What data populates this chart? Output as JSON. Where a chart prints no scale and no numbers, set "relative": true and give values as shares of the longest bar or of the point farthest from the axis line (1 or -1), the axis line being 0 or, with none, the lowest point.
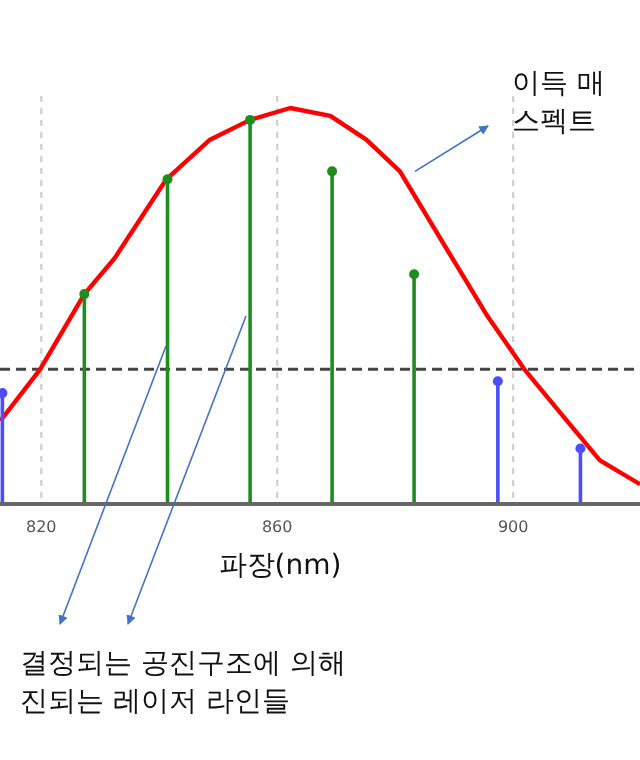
{
  "chart_data": {
    "type": "lollipop",
    "relative": true,
    "xlabel": "파장(nm)",
    "xlim": [
      813,
      921.5
    ],
    "xticks": [
      820,
      860,
      900
    ],
    "grid": "x",
    "series": [
      {
        "type": "line",
        "color": "#ff0000",
        "x": [
          813.05,
          819.8,
          827.3,
          832.4,
          841.2,
          848.6,
          855.4,
          862.2,
          869.0,
          875.1,
          880.8,
          889.7,
          895.4,
          901.9,
          908.0,
          914.7,
          921.5
        ],
        "values": [
          0.21,
          0.34,
          0.53,
          0.62,
          0.82,
          0.92,
          0.97,
          1.0,
          0.98,
          0.92,
          0.84,
          0.62,
          0.48,
          0.34,
          0.23,
          0.11,
          0.05
        ]
      },
      {
        "marker": "circle",
        "color": "#1f8c1f",
        "x": [
          827.3,
          841.4,
          855.4,
          869.3,
          883.2
        ],
        "values": [
          0.53,
          0.82,
          0.97,
          0.84,
          0.58
        ]
      },
      {
        "marker": "circle",
        "color": "#4d4dff",
        "x": [
          813.4,
          897.4,
          911.4
        ],
        "values": [
          0.28,
          0.31,
          0.14
        ]
      }
    ],
    "ref_lines": [
      {
        "axis": "y",
        "value": 0.34,
        "color": "#444444",
        "line_style": "dashed"
      }
    ],
    "annotations": [
      {
        "text": "이득 매\n스펙트",
        "x": 882,
        "y": 0.84
      },
      "결정되는 공진구조에 의해\n진되는 레이저 라인들"
    ]
  }
}
